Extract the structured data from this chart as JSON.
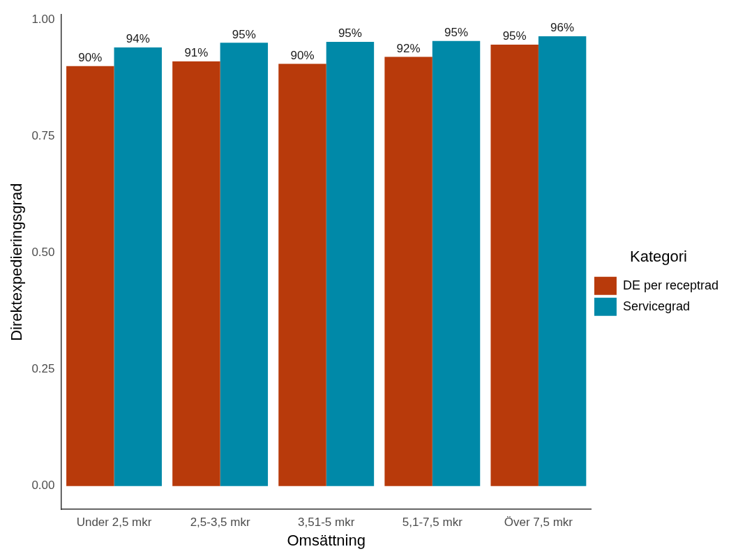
{
  "chart_data": {
    "type": "bar",
    "xlabel": "Omsättning",
    "ylabel": "Direktexpedieringsgrad",
    "legend_title": "Kategori",
    "legend": "right",
    "grid": false,
    "categories": [
      "Under 2,5 mkr",
      "2,5-3,5 mkr",
      "3,51-5 mkr",
      "5,1-7,5 mkr",
      "Över 7,5 mkr"
    ],
    "ylim": [
      -0.05,
      1.01
    ],
    "yticks": [
      {
        "value": 0,
        "label": "0.00"
      },
      {
        "value": 0.25,
        "label": "0.25"
      },
      {
        "value": 0.5,
        "label": "0.50"
      },
      {
        "value": 0.75,
        "label": "0.75"
      },
      {
        "value": 1,
        "label": "1.00"
      }
    ],
    "series": [
      {
        "name": "DE per receptrad",
        "color": "#b83a0b",
        "values": [
          0.9,
          0.91,
          0.905,
          0.92,
          0.946
        ],
        "value_labels": [
          "90%",
          "91%",
          "90%",
          "92%",
          "95%"
        ]
      },
      {
        "name": "Servicegrad",
        "color": "#0089a8",
        "values": [
          0.94,
          0.95,
          0.952,
          0.954,
          0.964
        ],
        "value_labels": [
          "94%",
          "95%",
          "95%",
          "95%",
          "96%"
        ]
      }
    ]
  }
}
